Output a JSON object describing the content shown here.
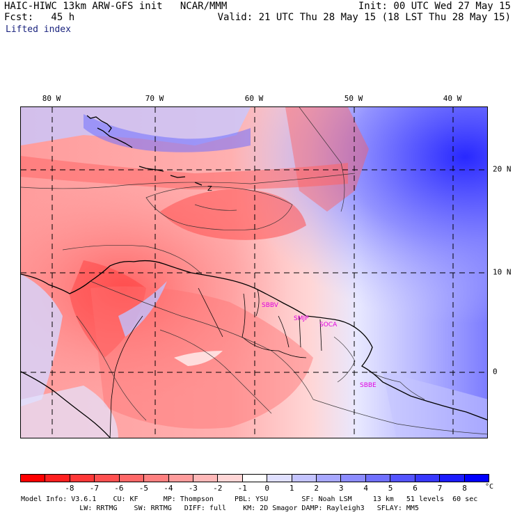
{
  "header": {
    "left_line1": "HAIC-HIWC 13km ARW-GFS init   NCAR/MMM",
    "left_line2": "Fcst:   45 h",
    "field_name": "Lifted index",
    "right_line1": "Init: 00 UTC Wed 27 May 15",
    "right_line2": "Valid: 21 UTC Thu 28 May 15 (18 LST Thu 28 May 15)"
  },
  "map": {
    "lon_labels": [
      "80 W",
      "70 W",
      "60 W",
      "50 W",
      "40 W"
    ],
    "lat_labels": [
      "20 N",
      "10 N",
      "0"
    ],
    "stations": [
      "SBBV",
      "SMJP",
      "SOCA",
      "SBBE"
    ],
    "station_color": "#e000e0",
    "contour_label": "Z"
  },
  "colorbar": {
    "ticks": [
      "-8",
      "-7",
      "-6",
      "-5",
      "-4",
      "-3",
      "-2",
      "-1",
      "0",
      "1",
      "2",
      "3",
      "4",
      "5",
      "6",
      "7",
      "8"
    ],
    "unit": "°C",
    "colors": [
      "#ff0000",
      "#ff2020",
      "#ff3838",
      "#ff5050",
      "#ff6868",
      "#ff8080",
      "#ff9c9c",
      "#ffb8b8",
      "#ffd6d6",
      "#ffffff",
      "#e0e0ff",
      "#c4c4ff",
      "#a8a8ff",
      "#8c8cff",
      "#7070ff",
      "#5454ff",
      "#3838ff",
      "#1c1cff",
      "#0000ff"
    ]
  },
  "footer": {
    "line1": "Model Info: V3.6.1    CU: KF      MP: Thompson     PBL: YSU        SF: Noah LSM     13 km   51 levels  60 sec",
    "line2": "              LW: RRTMG    SW: RRTMG   DIFF: full    KM: 2D Smagor DAMP: Rayleigh3   SFLAY: MM5"
  }
}
